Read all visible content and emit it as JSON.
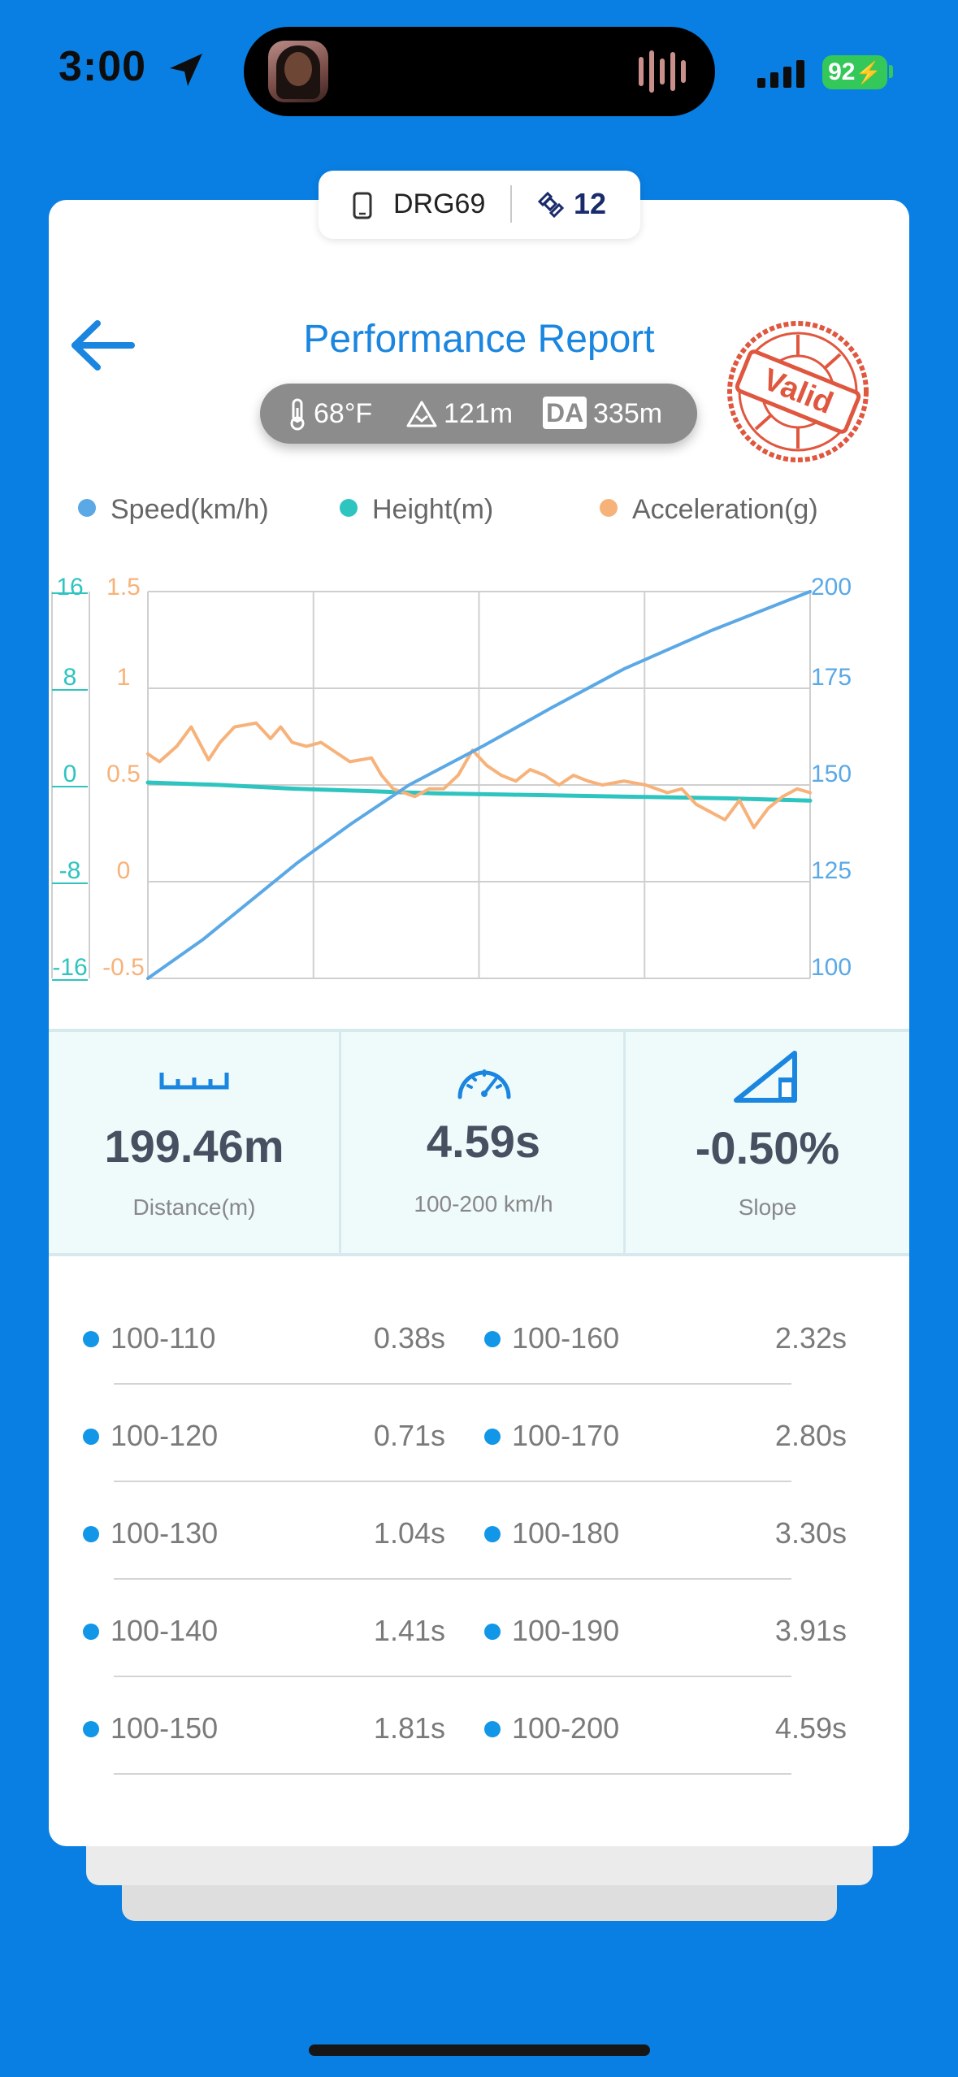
{
  "status_bar": {
    "time": "3:00",
    "battery": "92"
  },
  "device_tag": {
    "name": "DRG69",
    "satellites": "12"
  },
  "header": {
    "title": "Performance Report",
    "stamp_text": "Valid"
  },
  "conditions": {
    "temperature": "68°F",
    "altitude": "121m",
    "da_label": "DA",
    "density_altitude": "335m"
  },
  "legend": [
    {
      "label": "Speed(km/h)",
      "color": "#5AA8E6"
    },
    {
      "label": "Height(m)",
      "color": "#2EC4BF"
    },
    {
      "label": "Acceleration(g)",
      "color": "#F7B27A"
    }
  ],
  "chart_data": {
    "type": "line",
    "x_range": [
      0,
      4.59
    ],
    "grid": true,
    "axes": {
      "height": {
        "ticks": [
          "16",
          "8",
          "0",
          "-8",
          "-16"
        ],
        "range": [
          -16,
          16
        ],
        "color": "#2EC4BF"
      },
      "acceleration": {
        "ticks": [
          "1.5",
          "1",
          "0.5",
          "0",
          "-0.5"
        ],
        "range": [
          -0.5,
          1.5
        ],
        "color": "#F7B27A"
      },
      "speed": {
        "ticks": [
          "200",
          "175",
          "150",
          "125",
          "100"
        ],
        "range": [
          100,
          200
        ],
        "color": "#5AA8E6"
      }
    },
    "series": [
      {
        "name": "Speed(km/h)",
        "axis": "speed",
        "color": "#5AA8E6",
        "x": [
          0,
          0.38,
          0.71,
          1.04,
          1.41,
          1.81,
          2.32,
          2.8,
          3.3,
          3.91,
          4.59
        ],
        "y": [
          100,
          110,
          120,
          130,
          140,
          150,
          160,
          170,
          180,
          190,
          200
        ]
      },
      {
        "name": "Height(m)",
        "axis": "height",
        "color": "#2EC4BF",
        "x": [
          0,
          0.5,
          1.0,
          1.5,
          2.0,
          2.5,
          3.0,
          3.5,
          4.0,
          4.59
        ],
        "y": [
          0.2,
          0.0,
          -0.3,
          -0.5,
          -0.7,
          -0.8,
          -0.9,
          -1.0,
          -1.1,
          -1.3
        ]
      },
      {
        "name": "Acceleration(g)",
        "axis": "acceleration",
        "color": "#F7B27A",
        "x": [
          0,
          0.08,
          0.2,
          0.3,
          0.42,
          0.5,
          0.6,
          0.75,
          0.85,
          0.92,
          1.0,
          1.1,
          1.2,
          1.4,
          1.55,
          1.62,
          1.7,
          1.85,
          1.95,
          2.05,
          2.15,
          2.25,
          2.35,
          2.45,
          2.55,
          2.65,
          2.75,
          2.85,
          2.95,
          3.05,
          3.15,
          3.3,
          3.45,
          3.6,
          3.7,
          3.8,
          3.9,
          4.0,
          4.1,
          4.2,
          4.3,
          4.4,
          4.5,
          4.59
        ],
        "y": [
          0.66,
          0.62,
          0.7,
          0.8,
          0.63,
          0.72,
          0.8,
          0.82,
          0.74,
          0.8,
          0.72,
          0.7,
          0.72,
          0.62,
          0.64,
          0.55,
          0.48,
          0.44,
          0.48,
          0.48,
          0.55,
          0.68,
          0.6,
          0.55,
          0.52,
          0.58,
          0.55,
          0.5,
          0.55,
          0.52,
          0.5,
          0.52,
          0.5,
          0.46,
          0.48,
          0.4,
          0.36,
          0.32,
          0.42,
          0.28,
          0.38,
          0.44,
          0.48,
          0.46
        ]
      }
    ]
  },
  "stats": [
    {
      "icon": "ruler-icon",
      "value": "199.46m",
      "label": "Distance(m)"
    },
    {
      "icon": "speedometer-icon",
      "value": "4.59s",
      "label": "100-200 km/h"
    },
    {
      "icon": "slope-icon",
      "value": "-0.50%",
      "label": "Slope"
    }
  ],
  "splits": [
    {
      "range": "100-110",
      "time": "0.38s"
    },
    {
      "range": "100-120",
      "time": "0.71s"
    },
    {
      "range": "100-130",
      "time": "1.04s"
    },
    {
      "range": "100-140",
      "time": "1.41s"
    },
    {
      "range": "100-150",
      "time": "1.81s"
    },
    {
      "range": "100-160",
      "time": "2.32s"
    },
    {
      "range": "100-170",
      "time": "2.80s"
    },
    {
      "range": "100-180",
      "time": "3.30s"
    },
    {
      "range": "100-190",
      "time": "3.91s"
    },
    {
      "range": "100-200",
      "time": "4.59s"
    }
  ]
}
